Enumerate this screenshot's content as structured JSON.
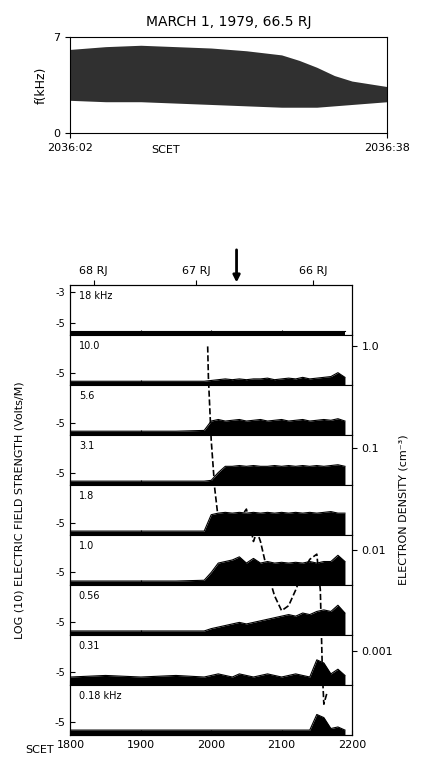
{
  "chart_data": [
    {
      "type": "area",
      "title": "MARCH 1, 1979, 66.5 RJ",
      "x_label": "SCET",
      "y_label": "f(kHz)",
      "x": [
        0,
        4,
        8,
        12,
        16,
        20,
        24,
        26,
        28,
        30,
        32,
        34,
        36
      ],
      "lower": [
        2.4,
        2.3,
        2.3,
        2.2,
        2.1,
        2.0,
        1.9,
        1.9,
        1.9,
        2.0,
        2.1,
        2.2,
        2.3
      ],
      "upper": [
        6.1,
        6.3,
        6.4,
        6.3,
        6.2,
        6.0,
        5.7,
        5.3,
        4.8,
        4.2,
        3.8,
        3.6,
        3.4
      ],
      "color": "#303030",
      "xlim": [
        0,
        36
      ],
      "xticks": [
        {
          "value": 0,
          "label": "2036:02"
        },
        {
          "value": 36,
          "label": "2036:38"
        }
      ],
      "ylim": [
        0,
        7
      ],
      "yticks": [
        0,
        7
      ]
    },
    {
      "type": "strip",
      "x_label": "SCET",
      "y_label": "LOG (10) ELECTRIC FIELD STRENGTH (Volts/M)",
      "color": "#000000",
      "x": [
        1800,
        1850,
        1900,
        1950,
        1990,
        2000,
        2010,
        2020,
        2030,
        2040,
        2050,
        2060,
        2070,
        2080,
        2090,
        2100,
        2110,
        2120,
        2130,
        2140,
        2150,
        2160,
        2170,
        2180,
        2190
      ],
      "xlim": [
        1800,
        2200
      ],
      "xticks": [
        1800,
        1900,
        2000,
        2100,
        2200
      ],
      "ylim": [
        -5.8,
        -2.6
      ],
      "strips": [
        {
          "label": "18 kHz",
          "yticks": [
            -5,
            -3
          ],
          "values": [
            -5.55,
            -5.55,
            -5.55,
            -5.55,
            -5.55,
            -5.55,
            -5.55,
            -5.55,
            -5.55,
            -5.55,
            -5.55,
            -5.55,
            -5.55,
            -5.55,
            -5.55,
            -5.55,
            -5.55,
            -5.55,
            -5.55,
            -5.55,
            -5.55,
            -5.55,
            -5.55,
            -5.55,
            -5.55
          ]
        },
        {
          "label": "10.0",
          "yticks": [
            -5
          ],
          "values": [
            -5.55,
            -5.55,
            -5.55,
            -5.55,
            -5.55,
            -5.5,
            -5.45,
            -5.4,
            -5.45,
            -5.4,
            -5.45,
            -5.4,
            -5.4,
            -5.35,
            -5.45,
            -5.4,
            -5.35,
            -5.4,
            -5.3,
            -5.4,
            -5.35,
            -5.3,
            -5.25,
            -5.0,
            -5.3
          ]
        },
        {
          "label": "5.6",
          "yticks": [
            -5
          ],
          "values": [
            -5.55,
            -5.55,
            -5.55,
            -5.55,
            -5.5,
            -4.9,
            -4.8,
            -4.9,
            -4.85,
            -4.8,
            -4.9,
            -4.85,
            -4.8,
            -4.9,
            -4.85,
            -4.8,
            -4.9,
            -4.85,
            -4.8,
            -4.9,
            -4.85,
            -4.8,
            -4.85,
            -4.75,
            -4.9
          ]
        },
        {
          "label": "3.1",
          "yticks": [
            -5
          ],
          "values": [
            -5.55,
            -5.55,
            -5.55,
            -5.55,
            -5.55,
            -5.5,
            -5.0,
            -4.6,
            -4.6,
            -4.55,
            -4.6,
            -4.55,
            -4.6,
            -4.6,
            -4.55,
            -4.6,
            -4.55,
            -4.6,
            -4.55,
            -4.6,
            -4.55,
            -4.6,
            -4.55,
            -4.5,
            -4.6
          ]
        },
        {
          "label": "1.8",
          "yticks": [
            -5
          ],
          "values": [
            -5.55,
            -5.55,
            -5.55,
            -5.55,
            -5.55,
            -4.5,
            -4.4,
            -4.35,
            -4.4,
            -4.35,
            -4.4,
            -4.35,
            -4.4,
            -4.35,
            -4.4,
            -4.35,
            -4.4,
            -4.35,
            -4.4,
            -4.35,
            -4.4,
            -4.35,
            -4.3,
            -4.4,
            -4.4
          ]
        },
        {
          "label": "1.0",
          "yticks": [
            -5
          ],
          "values": [
            -5.55,
            -5.55,
            -5.55,
            -5.55,
            -5.5,
            -5.0,
            -4.4,
            -4.3,
            -4.2,
            -4.0,
            -4.4,
            -4.1,
            -4.4,
            -4.3,
            -4.4,
            -4.35,
            -4.4,
            -4.35,
            -4.4,
            -4.3,
            -4.4,
            -4.3,
            -4.3,
            -3.9,
            -4.3
          ]
        },
        {
          "label": "0.56",
          "yticks": [
            -5
          ],
          "values": [
            -5.55,
            -5.55,
            -5.55,
            -5.55,
            -5.55,
            -5.4,
            -5.3,
            -5.2,
            -5.1,
            -5.0,
            -5.1,
            -5.0,
            -4.9,
            -4.8,
            -4.7,
            -4.6,
            -4.5,
            -4.6,
            -4.4,
            -4.5,
            -4.3,
            -4.2,
            -4.3,
            -3.9,
            -4.4
          ]
        },
        {
          "label": "0.31",
          "yticks": [
            -5
          ],
          "values": [
            -5.3,
            -5.2,
            -5.3,
            -5.2,
            -5.3,
            -5.2,
            -5.1,
            -5.2,
            -5.3,
            -5.1,
            -5.2,
            -5.3,
            -5.2,
            -5.1,
            -5.2,
            -5.3,
            -5.2,
            -5.1,
            -5.2,
            -5.3,
            -4.2,
            -4.4,
            -5.1,
            -4.8,
            -5.2
          ]
        },
        {
          "label": "0.18 kHz",
          "yticks": [
            -5
          ],
          "values": [
            -5.5,
            -5.5,
            -5.5,
            -5.5,
            -5.5,
            -5.5,
            -5.5,
            -5.5,
            -5.5,
            -5.5,
            -5.5,
            -5.5,
            -5.5,
            -5.5,
            -5.5,
            -5.5,
            -5.5,
            -5.5,
            -5.5,
            -5.5,
            -4.5,
            -4.7,
            -5.4,
            -5.3,
            -5.5
          ]
        }
      ],
      "density": {
        "y_label": "ELECTRON DENSITY (cm⁻³)",
        "log": "y",
        "line_style": "dashed",
        "color": "#000000",
        "x": [
          1995,
          1996,
          2000,
          2005,
          2010,
          2020,
          2030,
          2040,
          2050,
          2055,
          2060,
          2065,
          2070,
          2080,
          2090,
          2100,
          2110,
          2120,
          2130,
          2140,
          2150,
          2155,
          2158,
          2160,
          2165
        ],
        "values": [
          1.0,
          0.5,
          0.12,
          0.04,
          0.02,
          0.014,
          0.015,
          0.02,
          0.025,
          0.018,
          0.012,
          0.015,
          0.012,
          0.006,
          0.0035,
          0.0025,
          0.0028,
          0.004,
          0.006,
          0.008,
          0.009,
          0.004,
          0.0006,
          0.0003,
          0.0004
        ],
        "ylim": [
          0.00015,
          4
        ],
        "yticks": [
          {
            "value": 1,
            "label": "1.0"
          },
          0.1,
          0.01,
          0.001
        ]
      },
      "top_axis": {
        "xticks": [
          {
            "value": 1833,
            "label": "68 RJ"
          },
          {
            "value": 1979,
            "label": "67 RJ"
          },
          {
            "value": 2145,
            "label": "66 RJ"
          }
        ],
        "arrow_x": 2036
      }
    }
  ]
}
